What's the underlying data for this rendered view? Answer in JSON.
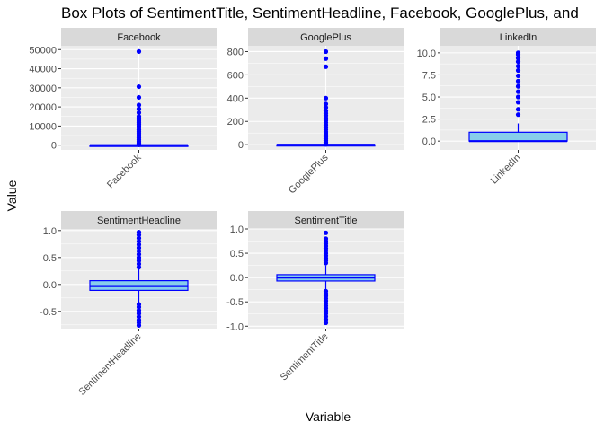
{
  "title": "Box Plots of SentimentTitle, SentimentHeadline, Facebook, GooglePlus, and",
  "xlabel": "Variable",
  "ylabel": "Value",
  "colors": {
    "panel_bg": "#ebebeb",
    "grid": "#ffffff",
    "strip_bg": "#d9d9d9",
    "box_fill": "#87ceeb",
    "box_line": "#0000ff",
    "outlier": "#0000ff"
  },
  "chart_data": [
    {
      "type": "box",
      "facet": "Facebook",
      "category": "Facebook",
      "ylim": [
        -2500,
        52000
      ],
      "yticks": [
        0,
        10000,
        20000,
        30000,
        40000,
        50000
      ],
      "box": {
        "whisker_low": 0,
        "q1": 0,
        "median": 0,
        "q3": 3,
        "whisker_high": 8
      },
      "outliers": [
        49000,
        30600,
        25000,
        21000,
        19000,
        17000,
        15000,
        14000,
        13000,
        12000,
        11000,
        10000,
        9000,
        8000,
        7000,
        6000,
        5000,
        4000,
        3000,
        2000,
        1200,
        600,
        200
      ]
    },
    {
      "type": "box",
      "facet": "GooglePlus",
      "category": "GooglePlus",
      "ylim": [
        -45,
        850
      ],
      "yticks": [
        0,
        200,
        400,
        600,
        800
      ],
      "box": {
        "whisker_low": 0,
        "q1": 0,
        "median": 0,
        "q3": 0,
        "whisker_high": 0
      },
      "outliers": [
        800,
        740,
        670,
        400,
        350,
        320,
        290,
        270,
        250,
        230,
        210,
        190,
        170,
        150,
        130,
        110,
        95,
        80,
        65,
        50,
        35,
        20,
        10,
        3
      ]
    },
    {
      "type": "box",
      "facet": "LinkedIn",
      "category": "LinkedIn",
      "ylim": [
        -1.0,
        10.8
      ],
      "yticks": [
        0.0,
        2.5,
        5.0,
        7.5,
        10.0
      ],
      "box": {
        "whisker_low": 0,
        "q1": 0,
        "median": 0,
        "q3": 1,
        "whisker_high": 2
      },
      "outliers": [
        3,
        3.6,
        4.4,
        5,
        5.6,
        6.2,
        6.8,
        7.4,
        8,
        8.5,
        9,
        9.4,
        9.8,
        10
      ]
    },
    {
      "type": "box",
      "facet": "SentimentHeadline",
      "category": "SentimentHeadline",
      "ylim": [
        -0.82,
        1.03
      ],
      "yticks": [
        -0.5,
        0.0,
        0.5,
        1.0
      ],
      "box": {
        "whisker_low": -0.35,
        "q1": -0.11,
        "median": -0.03,
        "q3": 0.07,
        "whisker_high": 0.3
      },
      "outliers": [
        0.32,
        0.38,
        0.44,
        0.5,
        0.56,
        0.62,
        0.68,
        0.74,
        0.8,
        0.86,
        0.92,
        0.97,
        -0.37,
        -0.42,
        -0.48,
        -0.54,
        -0.6,
        -0.66,
        -0.71,
        -0.76
      ]
    },
    {
      "type": "box",
      "facet": "SentimentTitle",
      "category": "SentimentTitle",
      "ylim": [
        -1.05,
        1.0
      ],
      "yticks": [
        -1.0,
        -0.5,
        0.0,
        0.5,
        1.0
      ],
      "box": {
        "whisker_low": -0.25,
        "q1": -0.07,
        "median": 0.0,
        "q3": 0.06,
        "whisker_high": 0.25
      },
      "outliers": [
        0.3,
        0.35,
        0.4,
        0.45,
        0.5,
        0.55,
        0.6,
        0.65,
        0.7,
        0.75,
        0.8,
        0.92,
        -0.28,
        -0.33,
        -0.38,
        -0.43,
        -0.48,
        -0.53,
        -0.58,
        -0.63,
        -0.68,
        -0.74,
        -0.8,
        -0.86,
        -0.93
      ]
    }
  ]
}
